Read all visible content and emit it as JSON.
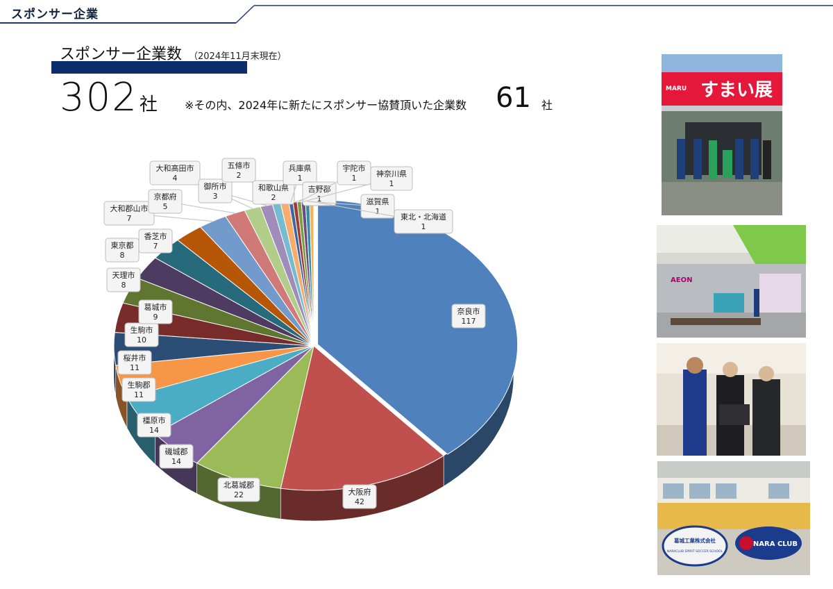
{
  "header": {
    "section_title": "スポンサー企業"
  },
  "summary": {
    "heading": "スポンサー企業数",
    "as_of": "（2024年11月末現在）",
    "total_value": "302",
    "total_unit": "社",
    "note_text": "※その内、2024年に新たにスポンサー協賛頂いた企業数",
    "new_value": "61",
    "new_unit": "社"
  },
  "colors": {
    "navy": "#0d2d6b",
    "accent_line": "#1f3a6b"
  },
  "chart_data": {
    "type": "pie",
    "title": "",
    "categories": [
      "奈良市",
      "大阪府",
      "北葛城郡",
      "磯城郡",
      "橿原市",
      "生駒郡",
      "桜井市",
      "生駒市",
      "葛城市",
      "天理市",
      "東京都",
      "香芝市",
      "大和郡山市",
      "京都府",
      "大和高田市",
      "御所市",
      "五條市",
      "和歌山県",
      "兵庫県",
      "吉野郡",
      "宇陀市",
      "神奈川県",
      "滋賀県",
      "東北・北海道"
    ],
    "values": [
      117,
      42,
      22,
      14,
      14,
      11,
      11,
      10,
      9,
      8,
      8,
      7,
      7,
      5,
      4,
      3,
      2,
      2,
      1,
      1,
      1,
      1,
      1,
      1
    ],
    "colors": [
      "#4f81bd",
      "#c0504d",
      "#9bbb59",
      "#8064a2",
      "#4bacc6",
      "#f79646",
      "#2c4d75",
      "#772c2a",
      "#5f7530",
      "#4d3b62",
      "#276a7c",
      "#b65708",
      "#729aca",
      "#d07a78",
      "#b2cc8a",
      "#9f8cba",
      "#75bcd0",
      "#f9ab6b",
      "#3a679c",
      "#9f3b38",
      "#7e9c40",
      "#664f83",
      "#348da5",
      "#f2b25a"
    ],
    "value_labels": [
      "117",
      "42",
      "22",
      "14",
      "14",
      "11",
      "11",
      "10",
      "9",
      "8",
      "8",
      "7",
      "7",
      "5",
      "4",
      "3",
      "2",
      "2",
      "1",
      "1",
      "1",
      "1",
      "1",
      "1"
    ]
  },
  "photos": [
    {
      "name": "photo-sumai-exhibition",
      "banner_text": "すまい展",
      "banner_brand": "MARU"
    },
    {
      "name": "photo-aeon-stage",
      "store_text": "AEON"
    },
    {
      "name": "photo-donation-ceremony"
    },
    {
      "name": "photo-soccer-school",
      "sign_left_line1": "葛城工業株式会社",
      "sign_left_line2": "NARACLUB SPIRIT SOCCER SCHOOL",
      "sign_right": "NARA CLUB"
    }
  ]
}
